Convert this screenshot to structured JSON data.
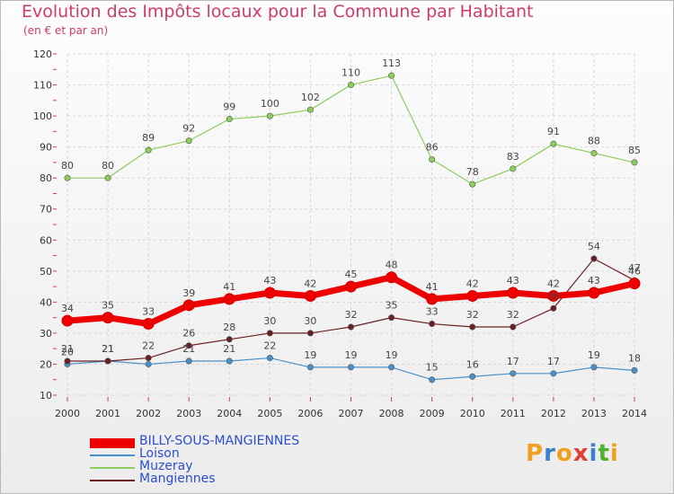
{
  "title": "Evolution des Impôts locaux pour la Commune par Habitant",
  "subtitle": "(en € et par an)",
  "logo": {
    "letters": [
      "P",
      "r",
      "o",
      "x",
      "i",
      "t",
      "i"
    ],
    "colors": [
      "#f0a020",
      "#3a7fd0",
      "#f0a020",
      "#e04030",
      "#3a7fd0",
      "#50b030",
      "#f0a020"
    ]
  },
  "chart_data": {
    "type": "line",
    "title": "Evolution des Impôts locaux pour la Commune par Habitant",
    "ylabel": "(en € et par an)",
    "x": [
      "2000",
      "2001",
      "2002",
      "2003",
      "2004",
      "2005",
      "2006",
      "2007",
      "2008",
      "2009",
      "2010",
      "2011",
      "2012",
      "2013",
      "2014"
    ],
    "ylim": [
      10,
      120
    ],
    "yticks": [
      "10",
      "20",
      "30",
      "40",
      "50",
      "60",
      "70",
      "80",
      "90",
      "100",
      "110",
      "120"
    ],
    "grid": true,
    "legend_position": "bottom-left",
    "series": [
      {
        "name": "Loison",
        "color": "#4a90c8",
        "width": 1.2,
        "values": [
          20,
          21,
          20,
          21,
          21,
          22,
          19,
          19,
          19,
          15,
          16,
          17,
          17,
          19,
          18
        ],
        "labels": [
          "20",
          "21",
          "",
          "21",
          "21",
          "22",
          "19",
          "19",
          "19",
          "15",
          "16",
          "17",
          "17",
          "19",
          "18"
        ]
      },
      {
        "name": "Muzeray",
        "color": "#8dcd5c",
        "width": 1.2,
        "values": [
          80,
          80,
          89,
          92,
          99,
          100,
          102,
          110,
          113,
          86,
          78,
          83,
          91,
          88,
          85
        ],
        "labels": [
          "80",
          "80",
          "89",
          "92",
          "99",
          "100",
          "102",
          "110",
          "113",
          "86",
          "78",
          "83",
          "91",
          "88",
          "85"
        ]
      },
      {
        "name": "Mangiennes",
        "color": "#6b1f22",
        "width": 1.2,
        "values": [
          21,
          21,
          22,
          26,
          28,
          30,
          30,
          32,
          35,
          33,
          32,
          32,
          38,
          54,
          47
        ],
        "labels": [
          "21",
          "21",
          "22",
          "26",
          "28",
          "30",
          "30",
          "32",
          "35",
          "33",
          "32",
          "32",
          "38",
          "54",
          "47"
        ]
      },
      {
        "name": "BILLY-SOUS-MANGIENNES",
        "color": "#ee0000",
        "width": 7,
        "values": [
          34,
          35,
          33,
          39,
          41,
          43,
          42,
          45,
          48,
          41,
          42,
          43,
          42,
          43,
          46
        ],
        "labels": [
          "34",
          "35",
          "33",
          "39",
          "41",
          "43",
          "42",
          "45",
          "48",
          "41",
          "42",
          "43",
          "42",
          "43",
          "46"
        ]
      }
    ],
    "legend_order": [
      "BILLY-SOUS-MANGIENNES",
      "Loison",
      "Muzeray",
      "Mangiennes"
    ]
  }
}
